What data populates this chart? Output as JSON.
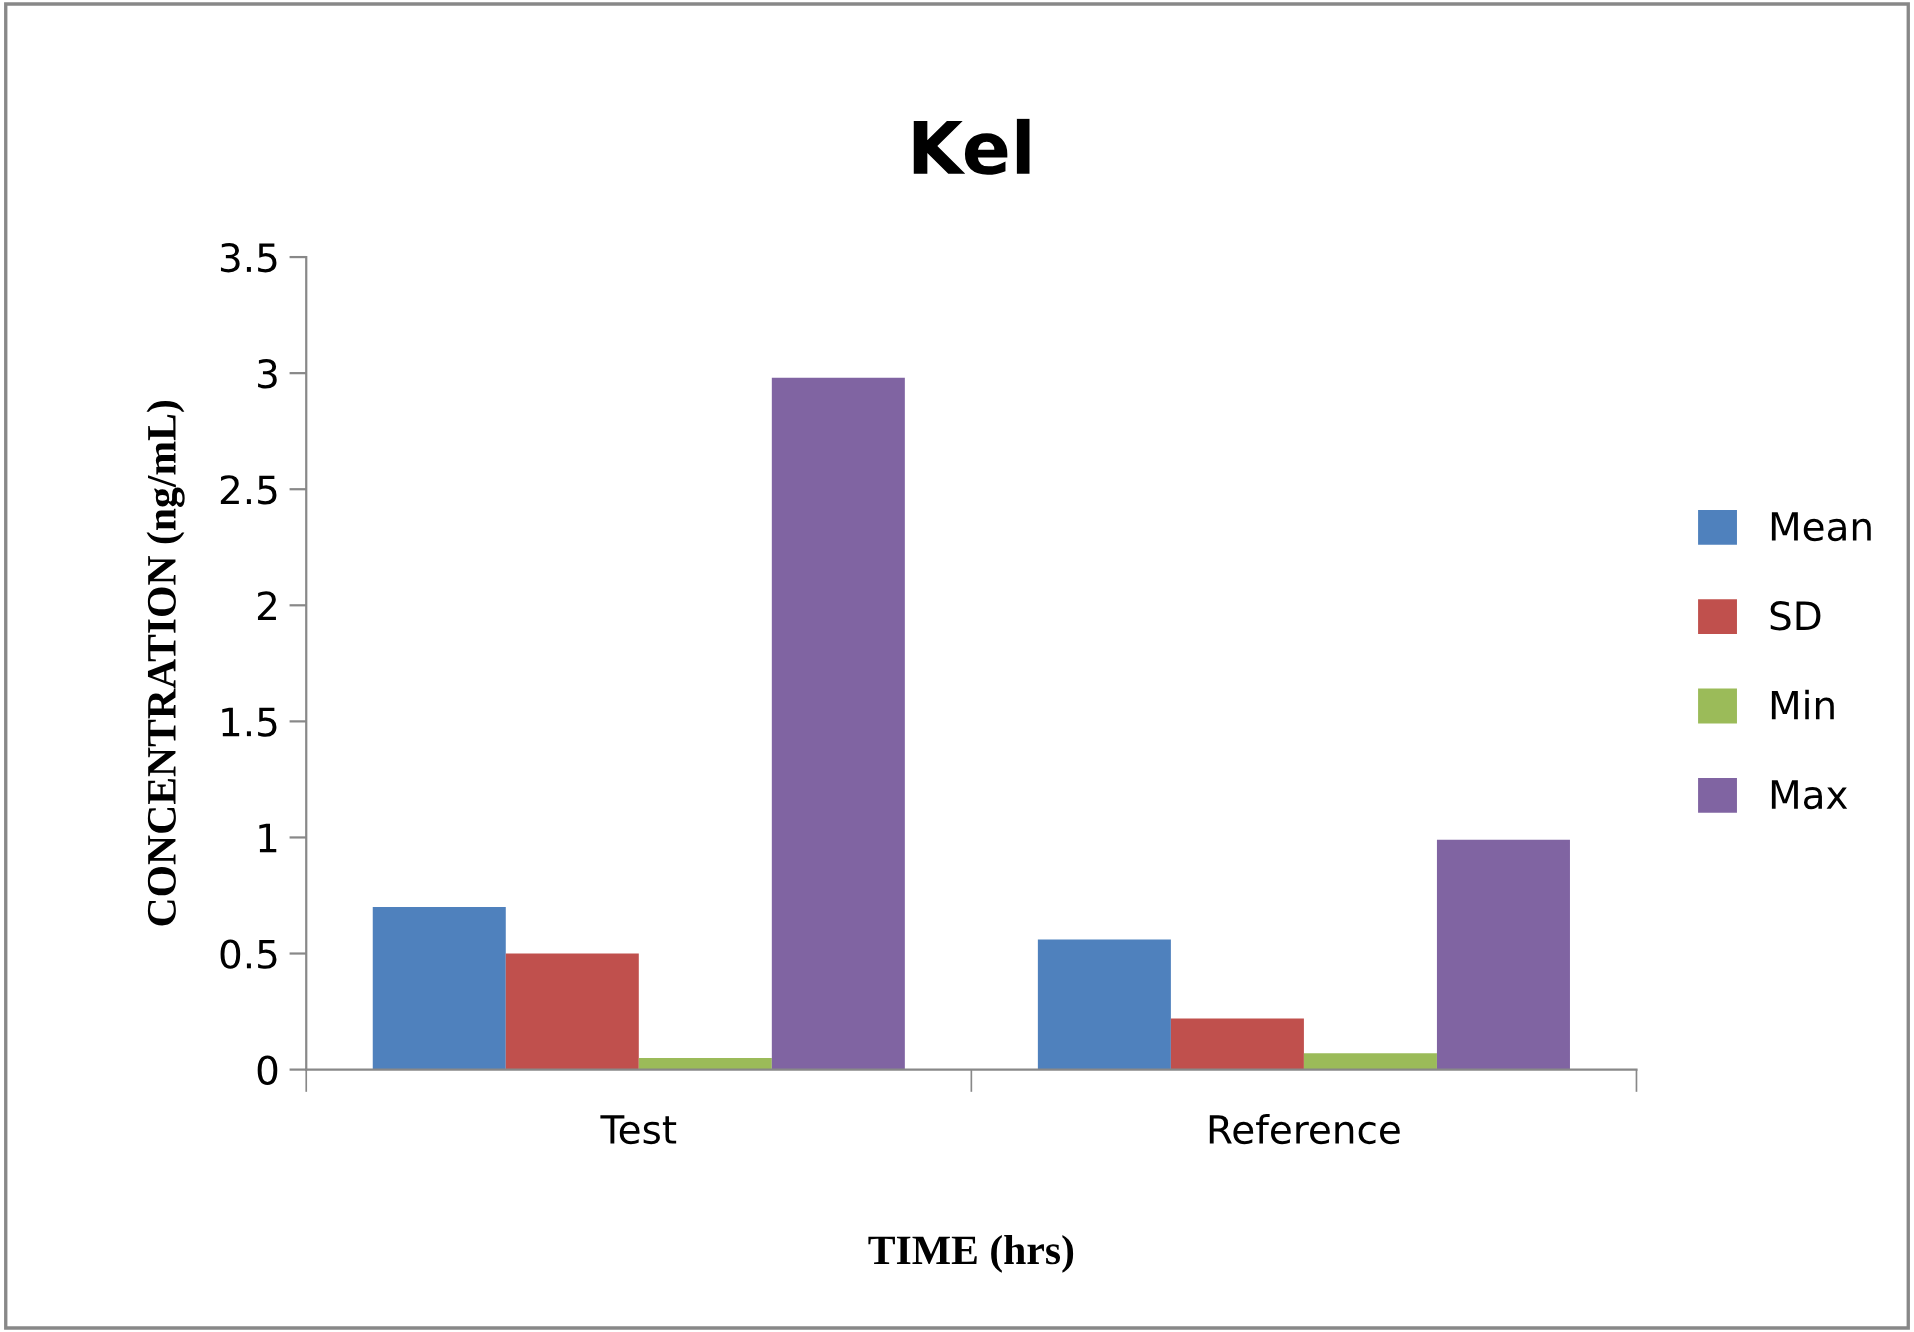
{
  "chart_data": {
    "type": "bar",
    "title": "Kel",
    "xlabel": "TIME (hrs)",
    "ylabel": "CONCENTRATION (ng/mL)",
    "categories": [
      "Test",
      "Reference"
    ],
    "series": [
      {
        "name": "Mean",
        "color": "#4f81bd",
        "values": [
          0.7,
          0.56
        ]
      },
      {
        "name": "SD",
        "color": "#c0504d",
        "values": [
          0.5,
          0.22
        ]
      },
      {
        "name": "Min",
        "color": "#9bbb59",
        "values": [
          0.05,
          0.07
        ]
      },
      {
        "name": "Max",
        "color": "#8064a2",
        "values": [
          2.98,
          0.99
        ]
      }
    ],
    "ylim": [
      0,
      3.5
    ],
    "yticks": [
      0,
      0.5,
      1,
      1.5,
      2,
      2.5,
      3,
      3.5
    ],
    "grid": false,
    "legend": "right"
  }
}
